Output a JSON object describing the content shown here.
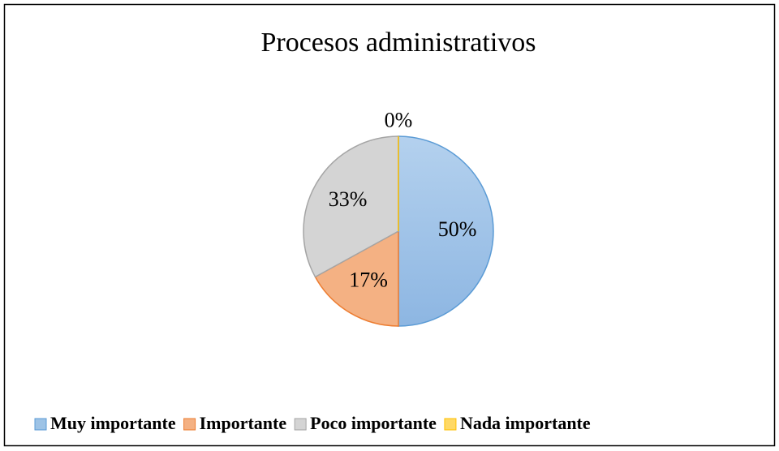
{
  "chart_data": {
    "type": "pie",
    "title": "Procesos administrativos",
    "categories": [
      "Muy importante",
      "Importante",
      "Poco importante",
      "Nada importante"
    ],
    "values": [
      50,
      17,
      33,
      0
    ],
    "value_labels": [
      "50%",
      "17%",
      "33%",
      "0%"
    ],
    "colors": [
      "#9dc3e6",
      "#f4b183",
      "#d4d4d4",
      "#ffd966"
    ],
    "legend": "bottom"
  }
}
